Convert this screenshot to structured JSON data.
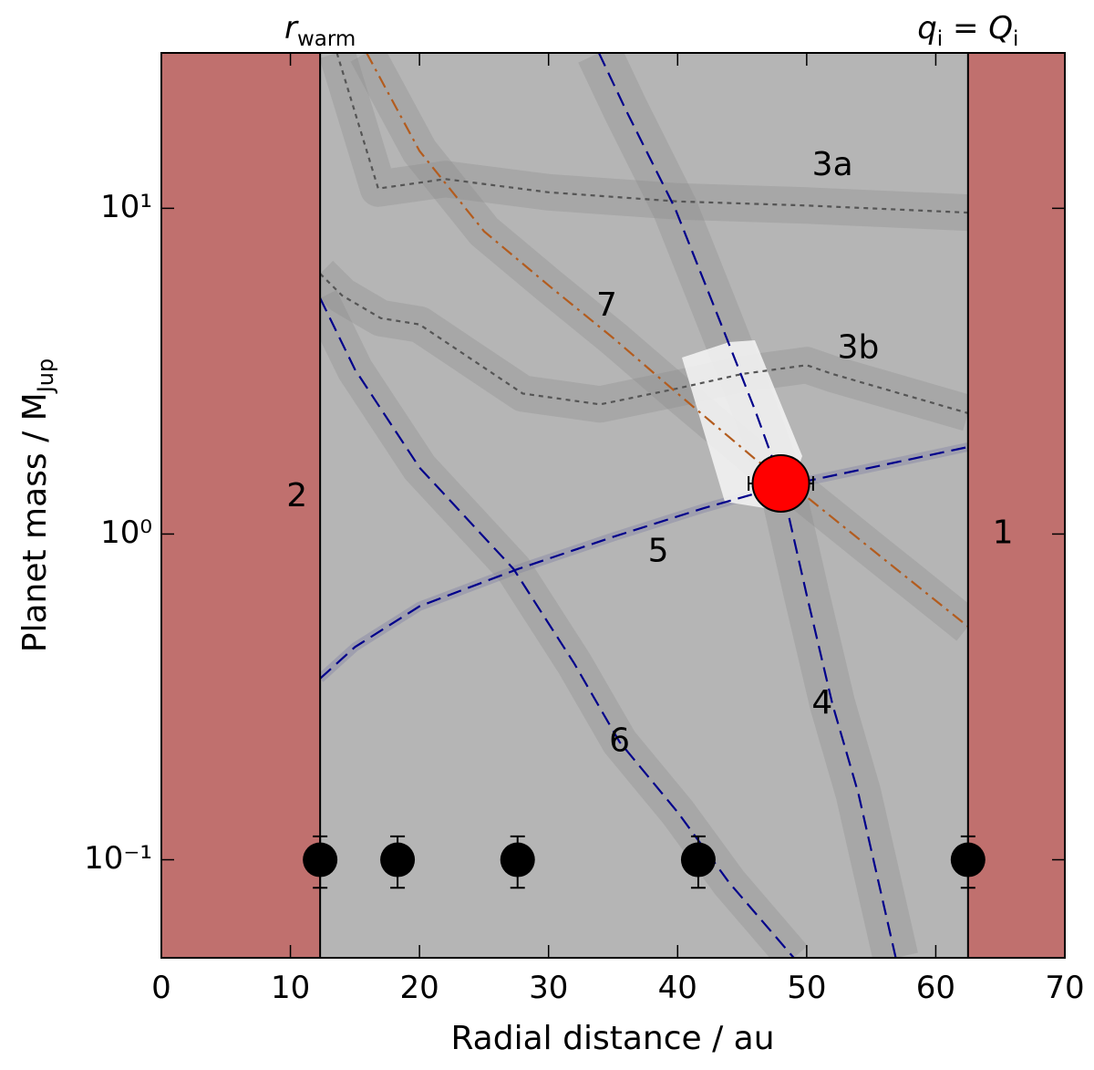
{
  "chart_data": {
    "type": "line",
    "xlabel": "Radial distance / au",
    "ylabel": [
      "Planet mass / M",
      "Jup"
    ],
    "xlim": [
      0,
      70
    ],
    "ylim": [
      0.05,
      30
    ],
    "log_y": true,
    "xticks": [
      0,
      10,
      20,
      30,
      40,
      50,
      60,
      70
    ],
    "yticks": [
      {
        "value": 0.1,
        "label": "10⁻¹"
      },
      {
        "value": 1,
        "label": "10⁰"
      },
      {
        "value": 10,
        "label": "10¹"
      }
    ],
    "excluded_color": "#c0706e",
    "excluded_regions": [
      {
        "name": "2",
        "x": [
          0,
          12.3
        ]
      },
      {
        "name": "1",
        "x": [
          62.5,
          70
        ]
      }
    ],
    "boundaries": [
      {
        "x": 12.3,
        "label": [
          "r",
          "warm"
        ]
      },
      {
        "x": 62.5,
        "label": [
          "q",
          "i",
          " = ",
          "Q",
          "i"
        ]
      }
    ],
    "series": [
      {
        "name": "3a",
        "color": "#555555",
        "style": "dotted",
        "x": [
          13.6,
          16.8,
          22,
          30,
          40,
          50,
          62.5
        ],
        "values": [
          30,
          11.5,
          12.3,
          11.2,
          10.5,
          10.2,
          9.7
        ]
      },
      {
        "name": "3b",
        "color": "#555555",
        "style": "dotted",
        "x": [
          12.3,
          14,
          17,
          20,
          28,
          34,
          40,
          45,
          50,
          52,
          62.5
        ],
        "values": [
          6.3,
          5.4,
          4.6,
          4.4,
          2.7,
          2.5,
          2.8,
          3.1,
          3.3,
          3.1,
          2.35
        ]
      },
      {
        "name": "4",
        "color": "#00008b",
        "style": "dashed",
        "x": [
          33.9,
          36,
          39.8,
          43,
          46,
          48,
          50,
          52,
          54,
          56.9
        ],
        "values": [
          30,
          20,
          10,
          4.8,
          2.4,
          1.45,
          0.65,
          0.3,
          0.16,
          0.05
        ]
      },
      {
        "name": "5",
        "color": "#00008b",
        "style": "dashed",
        "x": [
          12.3,
          15,
          20,
          27.6,
          35,
          42,
          48,
          55,
          62.5
        ],
        "values": [
          0.36,
          0.45,
          0.6,
          0.78,
          0.98,
          1.2,
          1.4,
          1.6,
          1.85
        ]
      },
      {
        "name": "6",
        "color": "#00008b",
        "style": "dashed",
        "x": [
          12.3,
          15,
          20,
          27.3,
          32,
          35.5,
          40,
          44,
          49
        ],
        "values": [
          5.3,
          3.2,
          1.6,
          0.78,
          0.4,
          0.23,
          0.14,
          0.085,
          0.05
        ]
      },
      {
        "name": "7",
        "color": "#b35c1e",
        "style": "dashdot",
        "x": [
          15.9,
          20,
          25,
          30,
          35,
          40,
          46,
          50,
          55,
          62.5
        ],
        "values": [
          30,
          15,
          8.5,
          5.8,
          4,
          2.7,
          1.7,
          1.3,
          0.9,
          0.52
        ]
      }
    ],
    "points": {
      "color": "#000000",
      "x": [
        12.3,
        18.3,
        27.6,
        41.6,
        62.5
      ],
      "values": [
        0.1,
        0.1,
        0.1,
        0.1,
        0.1
      ],
      "yerr": [
        0.018,
        0.018,
        0.018,
        0.018,
        0.018
      ]
    },
    "planet": {
      "color": "#ff0000",
      "x": 48,
      "value": 1.43,
      "xerr": 2.5
    }
  }
}
